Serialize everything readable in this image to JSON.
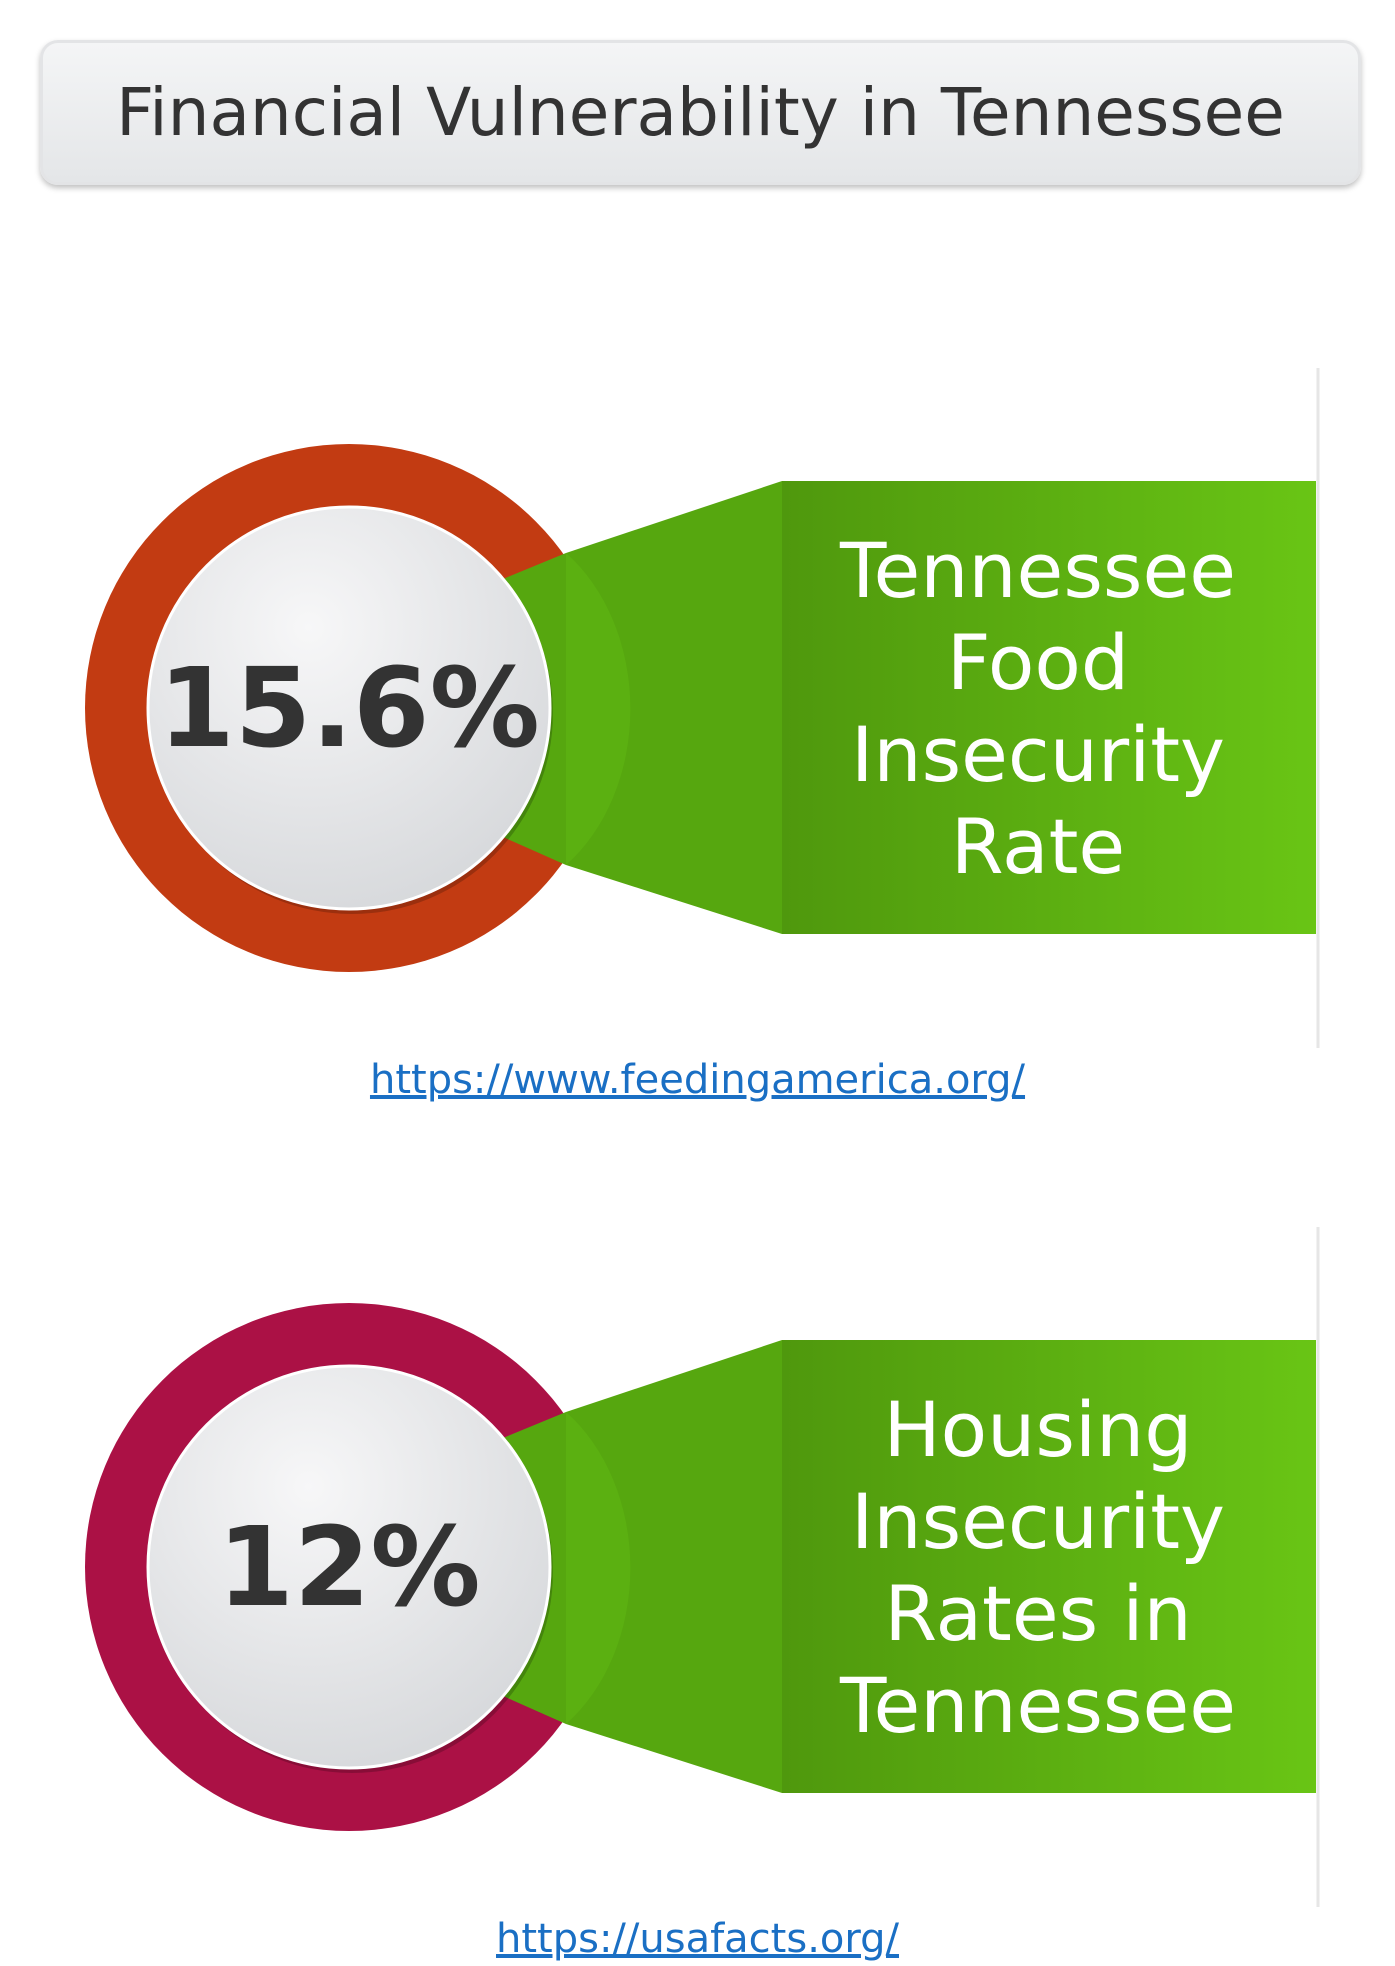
{
  "title": "Financial Vulnerability in Tennessee",
  "items": [
    {
      "value": "15.6%",
      "label_lines": [
        "Tennessee",
        "Food",
        "Insecurity",
        "Rate"
      ],
      "ring_color": "#c23b12",
      "link": "https://www.feedingamerica.org/"
    },
    {
      "value": "12%",
      "label_lines": [
        "Housing",
        "Insecurity",
        "Rates in",
        "Tennessee"
      ],
      "ring_color": "#ab1145",
      "link": "https://usafacts.org/"
    }
  ]
}
